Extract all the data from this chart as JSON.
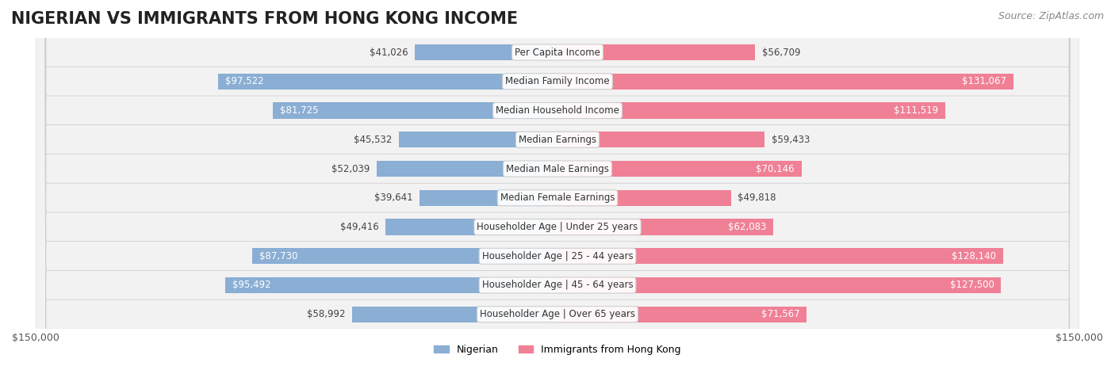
{
  "title": "NIGERIAN VS IMMIGRANTS FROM HONG KONG INCOME",
  "source": "Source: ZipAtlas.com",
  "categories": [
    "Per Capita Income",
    "Median Family Income",
    "Median Household Income",
    "Median Earnings",
    "Median Male Earnings",
    "Median Female Earnings",
    "Householder Age | Under 25 years",
    "Householder Age | 25 - 44 years",
    "Householder Age | 45 - 64 years",
    "Householder Age | Over 65 years"
  ],
  "nigerian": [
    41026,
    97522,
    81725,
    45532,
    52039,
    39641,
    49416,
    87730,
    95492,
    58992
  ],
  "hongkong": [
    56709,
    131067,
    111519,
    59433,
    70146,
    49818,
    62083,
    128140,
    127500,
    71567
  ],
  "max_val": 150000,
  "nigerian_color": "#8aaed4",
  "hongkong_color": "#f08096",
  "nigerian_label_color_default": "#555555",
  "nigerian_label_color_inside": "#ffffff",
  "hongkong_label_color_default": "#555555",
  "hongkong_label_color_inside": "#ffffff",
  "inside_threshold": 60000,
  "bar_height": 0.55,
  "row_bg_color": "#f2f2f2",
  "label_nigerian": "Nigerian",
  "label_hongkong": "Immigrants from Hong Kong",
  "title_fontsize": 15,
  "source_fontsize": 9,
  "tick_fontsize": 9,
  "label_fontsize": 8.5,
  "category_fontsize": 8.5
}
